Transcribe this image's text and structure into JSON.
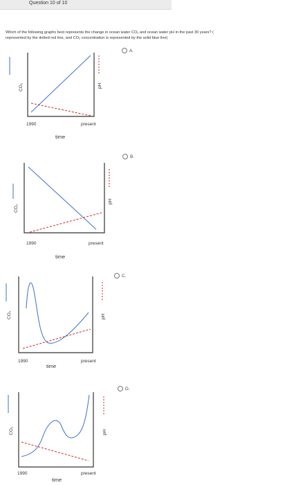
{
  "header": {
    "question_label": "Question 10 of 10"
  },
  "question": {
    "line1": "Which of the following graphs best represents the change in ocean water CO₂ and ocean water pH in the past 30 years? (",
    "line2": "represented by the dotted red line, and CO₂ concentration is represented by the solid blue line)"
  },
  "options": [
    {
      "label": "A.",
      "start_label": "1990",
      "end_label": "present",
      "x_label": "time",
      "left_label": "CO₂",
      "right_label": "pH"
    },
    {
      "label": "B.",
      "start_label": "1990",
      "end_label": "present",
      "x_label": "time",
      "left_label": "CO₂",
      "right_label": "pH"
    },
    {
      "label": "C.",
      "start_label": "1990",
      "end_label": "present",
      "x_label": "time",
      "left_label": "CO₂",
      "right_label": "pH"
    },
    {
      "label": "D.",
      "start_label": "1990",
      "end_label": "present",
      "x_label": "time",
      "left_label": "CO₂",
      "right_label": "pH"
    }
  ],
  "colors": {
    "co2_line": "#4a7bd0",
    "ph_line": "#d23a3a"
  }
}
